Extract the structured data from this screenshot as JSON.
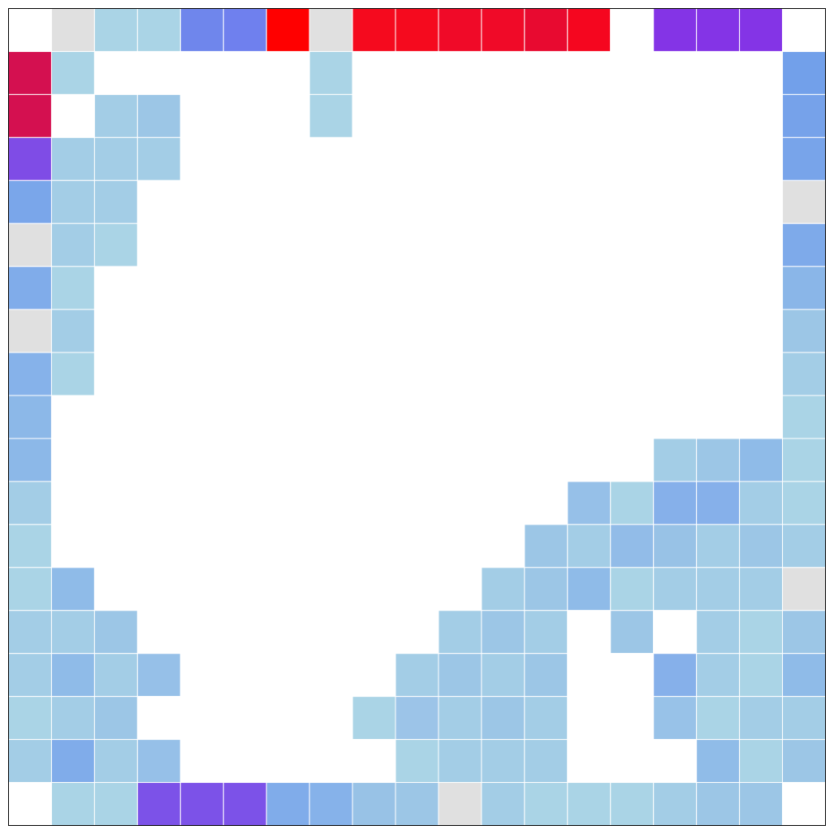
{
  "grid": {
    "rows": [
      [
        "#ffffff",
        "#e0e0e0",
        "#aad4e6",
        "#aad4e6",
        "#6f86ec",
        "#6f80ee",
        "#ff0000",
        "#e0e0e0",
        "#f50a1e",
        "#f50a1e",
        "#f00a28",
        "#f00a28",
        "#e80a30",
        "#f5061f",
        "#ffffff",
        "#8434e6",
        "#8434e6",
        "#8434e6",
        "#ffffff"
      ],
      [
        "#d41050",
        "#aad4e6",
        "#ffffff",
        "#ffffff",
        "#ffffff",
        "#ffffff",
        "#ffffff",
        "#aad4e6",
        "#ffffff",
        "#ffffff",
        "#ffffff",
        "#ffffff",
        "#ffffff",
        "#ffffff",
        "#ffffff",
        "#ffffff",
        "#ffffff",
        "#ffffff",
        "#72a0ea"
      ],
      [
        "#d41050",
        "#ffffff",
        "#a3cde6",
        "#9cc6e6",
        "#ffffff",
        "#ffffff",
        "#ffffff",
        "#aad4e6",
        "#ffffff",
        "#ffffff",
        "#ffffff",
        "#ffffff",
        "#ffffff",
        "#ffffff",
        "#ffffff",
        "#ffffff",
        "#ffffff",
        "#ffffff",
        "#76a2ea"
      ],
      [
        "#7f4ce6",
        "#a3cde6",
        "#a3cde6",
        "#a3cde6",
        "#ffffff",
        "#ffffff",
        "#ffffff",
        "#ffffff",
        "#ffffff",
        "#ffffff",
        "#ffffff",
        "#ffffff",
        "#ffffff",
        "#ffffff",
        "#ffffff",
        "#ffffff",
        "#ffffff",
        "#ffffff",
        "#78a4ea"
      ],
      [
        "#7aa6ea",
        "#a3cde6",
        "#a3cde6",
        "#ffffff",
        "#ffffff",
        "#ffffff",
        "#ffffff",
        "#ffffff",
        "#ffffff",
        "#ffffff",
        "#ffffff",
        "#ffffff",
        "#ffffff",
        "#ffffff",
        "#ffffff",
        "#ffffff",
        "#ffffff",
        "#ffffff",
        "#e0e0e0"
      ],
      [
        "#e0e0e0",
        "#a3cde6",
        "#aad4e6",
        "#ffffff",
        "#ffffff",
        "#ffffff",
        "#ffffff",
        "#ffffff",
        "#ffffff",
        "#ffffff",
        "#ffffff",
        "#ffffff",
        "#ffffff",
        "#ffffff",
        "#ffffff",
        "#ffffff",
        "#ffffff",
        "#ffffff",
        "#7eaaea"
      ],
      [
        "#80acea",
        "#aad4e6",
        "#ffffff",
        "#ffffff",
        "#ffffff",
        "#ffffff",
        "#ffffff",
        "#ffffff",
        "#ffffff",
        "#ffffff",
        "#ffffff",
        "#ffffff",
        "#ffffff",
        "#ffffff",
        "#ffffff",
        "#ffffff",
        "#ffffff",
        "#ffffff",
        "#8ab6e8"
      ],
      [
        "#e0e0e0",
        "#a3cde6",
        "#ffffff",
        "#ffffff",
        "#ffffff",
        "#ffffff",
        "#ffffff",
        "#ffffff",
        "#ffffff",
        "#ffffff",
        "#ffffff",
        "#ffffff",
        "#ffffff",
        "#ffffff",
        "#ffffff",
        "#ffffff",
        "#ffffff",
        "#ffffff",
        "#9cc6e6"
      ],
      [
        "#86b2ea",
        "#aad4e6",
        "#ffffff",
        "#ffffff",
        "#ffffff",
        "#ffffff",
        "#ffffff",
        "#ffffff",
        "#ffffff",
        "#ffffff",
        "#ffffff",
        "#ffffff",
        "#ffffff",
        "#ffffff",
        "#ffffff",
        "#ffffff",
        "#ffffff",
        "#ffffff",
        "#a3cde6"
      ],
      [
        "#8cb8e8",
        "#ffffff",
        "#ffffff",
        "#ffffff",
        "#ffffff",
        "#ffffff",
        "#ffffff",
        "#ffffff",
        "#ffffff",
        "#ffffff",
        "#ffffff",
        "#ffffff",
        "#ffffff",
        "#ffffff",
        "#ffffff",
        "#ffffff",
        "#ffffff",
        "#ffffff",
        "#aad4e6"
      ],
      [
        "#8cb8e8",
        "#ffffff",
        "#ffffff",
        "#ffffff",
        "#ffffff",
        "#ffffff",
        "#ffffff",
        "#ffffff",
        "#ffffff",
        "#ffffff",
        "#ffffff",
        "#ffffff",
        "#ffffff",
        "#ffffff",
        "#ffffff",
        "#a3cde6",
        "#9cc6e6",
        "#8fbbe8",
        "#aad4e6"
      ],
      [
        "#a3cde6",
        "#ffffff",
        "#ffffff",
        "#ffffff",
        "#ffffff",
        "#ffffff",
        "#ffffff",
        "#ffffff",
        "#ffffff",
        "#ffffff",
        "#ffffff",
        "#ffffff",
        "#ffffff",
        "#96c0e8",
        "#aad4e6",
        "#86b0ea",
        "#86b0ea",
        "#a3cde6",
        "#aad4e6"
      ],
      [
        "#aad4e6",
        "#ffffff",
        "#ffffff",
        "#ffffff",
        "#ffffff",
        "#ffffff",
        "#ffffff",
        "#ffffff",
        "#ffffff",
        "#ffffff",
        "#ffffff",
        "#ffffff",
        "#9cc6e6",
        "#a3cde6",
        "#92bce8",
        "#98c2e6",
        "#a3cde6",
        "#9cc6e6",
        "#a3cde6"
      ],
      [
        "#aad4e6",
        "#8fbbe8",
        "#ffffff",
        "#ffffff",
        "#ffffff",
        "#ffffff",
        "#ffffff",
        "#ffffff",
        "#ffffff",
        "#ffffff",
        "#ffffff",
        "#a3cde6",
        "#9cc6e6",
        "#8fbbe8",
        "#aad4e6",
        "#a3cde6",
        "#a3cde6",
        "#a3cde6",
        "#e0e0e0"
      ],
      [
        "#a3cde6",
        "#a3cde6",
        "#9cc6e6",
        "#ffffff",
        "#ffffff",
        "#ffffff",
        "#ffffff",
        "#ffffff",
        "#ffffff",
        "#ffffff",
        "#a3cde6",
        "#9cc6e6",
        "#a3cde6",
        "#ffffff",
        "#9cc6e6",
        "#ffffff",
        "#a3cde6",
        "#aad4e6",
        "#9cc6e6"
      ],
      [
        "#a3cde6",
        "#8fbbe8",
        "#a3cde6",
        "#96c0e8",
        "#ffffff",
        "#ffffff",
        "#ffffff",
        "#ffffff",
        "#ffffff",
        "#a3cde6",
        "#9cc6e6",
        "#a3cde6",
        "#9cc6e6",
        "#ffffff",
        "#ffffff",
        "#86b0ea",
        "#a3cde6",
        "#aad4e6",
        "#8fbbe8"
      ],
      [
        "#aad4e6",
        "#a3cde6",
        "#9cc6e6",
        "#ffffff",
        "#ffffff",
        "#ffffff",
        "#ffffff",
        "#ffffff",
        "#aad4e6",
        "#9cc4e8",
        "#a3cde6",
        "#9cc6e6",
        "#a3cde6",
        "#ffffff",
        "#ffffff",
        "#98c2e8",
        "#aad4e6",
        "#a3cde6",
        "#a3cde6"
      ],
      [
        "#a3cde6",
        "#80acea",
        "#a3cde6",
        "#96c0e8",
        "#ffffff",
        "#ffffff",
        "#ffffff",
        "#ffffff",
        "#ffffff",
        "#aad4e6",
        "#a3cde6",
        "#a3cde6",
        "#a3cde6",
        "#ffffff",
        "#ffffff",
        "#ffffff",
        "#90bce8",
        "#aad4e6",
        "#9cc6e6"
      ],
      [
        "#ffffff",
        "#aad4e6",
        "#aad4e6",
        "#7c52e8",
        "#7c52e8",
        "#7c52e8",
        "#80acea",
        "#86b2ea",
        "#98c2e6",
        "#9cc6e6",
        "#e0e0e0",
        "#a3cde6",
        "#aad4e6",
        "#aad4e6",
        "#aad4e6",
        "#a3cde6",
        "#9cc6e6",
        "#9cc6e6",
        "#ffffff"
      ]
    ]
  }
}
